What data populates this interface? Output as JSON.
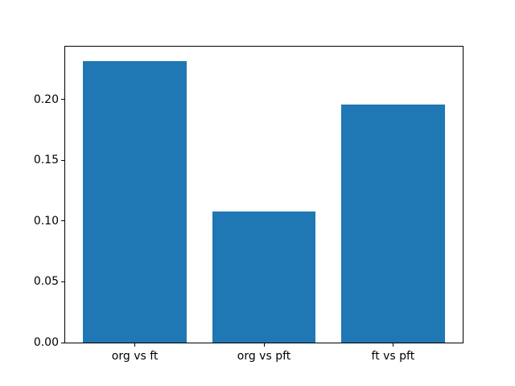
{
  "chart_data": {
    "type": "bar",
    "categories": [
      "org vs ft",
      "org vs pft",
      "ft vs pft"
    ],
    "values": [
      0.232,
      0.108,
      0.196
    ],
    "title": "",
    "xlabel": "",
    "ylabel": "",
    "ylim": [
      0,
      0.2436
    ],
    "xlim": [
      -0.54,
      2.54
    ],
    "bar_width_units": 0.8,
    "yticks": [
      0.0,
      0.05,
      0.1,
      0.15,
      0.2
    ],
    "ytick_labels": [
      "0.00",
      "0.05",
      "0.10",
      "0.15",
      "0.20"
    ],
    "bar_color": "#1f77b4",
    "spine_color": "#000000",
    "grid": false,
    "legend": null
  }
}
